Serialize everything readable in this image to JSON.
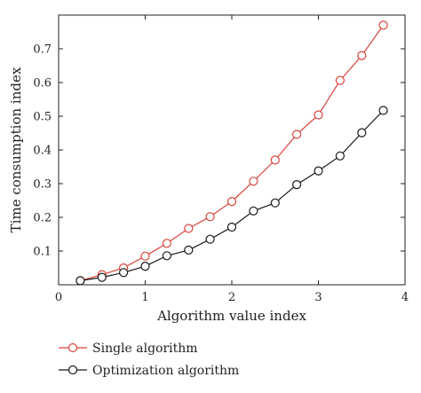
{
  "chart_data": {
    "type": "line",
    "xlabel": "Algorithm value index",
    "ylabel": "Time consumption index",
    "xlim": [
      0,
      4
    ],
    "ylim": [
      0,
      0.8
    ],
    "xticks": [
      0,
      1,
      2,
      3,
      4
    ],
    "xtick_labels": [
      "0",
      "1",
      "2",
      "3",
      "4"
    ],
    "yticks": [
      0.1,
      0.2,
      0.3,
      0.4,
      0.5,
      0.6,
      0.7
    ],
    "ytick_labels": [
      "0.1",
      "0.2",
      "0.3",
      "0.4",
      "0.5",
      "0.6",
      "0.7"
    ],
    "grid": false,
    "legend_position": "below-left",
    "x": [
      0.25,
      0.5,
      0.75,
      1.0,
      1.25,
      1.5,
      1.75,
      2.0,
      2.25,
      2.5,
      2.75,
      3.0,
      3.25,
      3.5,
      3.75
    ],
    "series": [
      {
        "name": "Single algorithm",
        "color": "#d9433a",
        "marker": "open-circle",
        "values": [
          0.012,
          0.03,
          0.05,
          0.085,
          0.123,
          0.167,
          0.202,
          0.247,
          0.307,
          0.37,
          0.446,
          0.504,
          0.606,
          0.68,
          0.77
        ]
      },
      {
        "name": "Optimization algorithm",
        "color": "#1a1a1a",
        "marker": "open-circle",
        "values": [
          0.012,
          0.022,
          0.036,
          0.055,
          0.086,
          0.103,
          0.135,
          0.171,
          0.219,
          0.243,
          0.297,
          0.338,
          0.382,
          0.451,
          0.517
        ]
      }
    ]
  }
}
